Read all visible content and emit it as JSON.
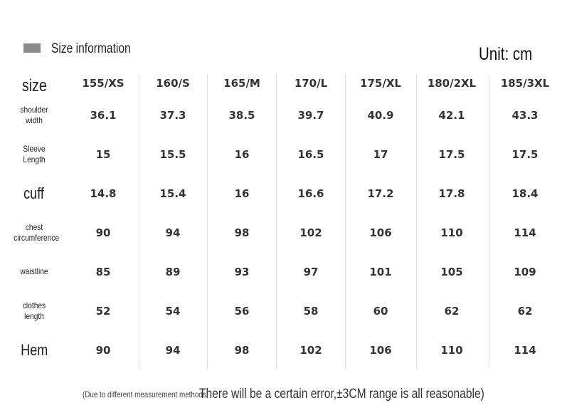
{
  "header": {
    "title": "Size information",
    "unit": "Unit: cm"
  },
  "table": {
    "corner": "size",
    "columns": [
      "155/XS",
      "160/S",
      "165/M",
      "170/L",
      "175/XL",
      "180/2XL",
      "185/3XL"
    ],
    "rows": [
      {
        "label": "shoulder width",
        "values": [
          "36.1",
          "37.3",
          "38.5",
          "39.7",
          "40.9",
          "42.1",
          "43.3"
        ]
      },
      {
        "label": "Sleeve Length",
        "values": [
          "15",
          "15.5",
          "16",
          "16.5",
          "17",
          "17.5",
          "17.5"
        ]
      },
      {
        "label": "cuff",
        "values": [
          "14.8",
          "15.4",
          "16",
          "16.6",
          "17.2",
          "17.8",
          "18.4"
        ]
      },
      {
        "label": "chest circumference",
        "values": [
          "90",
          "94",
          "98",
          "102",
          "106",
          "110",
          "114"
        ]
      },
      {
        "label": "waistline",
        "values": [
          "85",
          "89",
          "93",
          "97",
          "101",
          "105",
          "109"
        ]
      },
      {
        "label": "clothes length",
        "values": [
          "52",
          "54",
          "56",
          "58",
          "60",
          "62",
          "62"
        ]
      },
      {
        "label": "Hem",
        "values": [
          "90",
          "94",
          "98",
          "102",
          "106",
          "110",
          "114"
        ]
      }
    ]
  },
  "footer": {
    "note_small": "(Due to different measurement methods,",
    "note_main": "There will be a certain error,±3CM range is all reasonable)"
  }
}
